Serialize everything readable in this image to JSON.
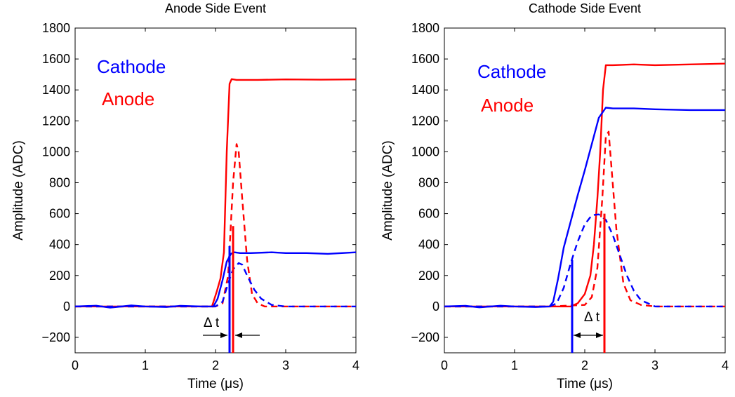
{
  "chart_data": [
    {
      "type": "line",
      "title": "Anode Side Event",
      "xlabel": "Time (μs)",
      "ylabel": "Amplitude (ADC)",
      "xlim": [
        0,
        4
      ],
      "ylim": [
        -300,
        1800
      ],
      "xticks": [
        0,
        1,
        2,
        3,
        4
      ],
      "xtick_labels": [
        "0",
        "1",
        "2",
        "3",
        "4"
      ],
      "yticks": [
        -200,
        0,
        200,
        400,
        600,
        800,
        1000,
        1200,
        1400,
        1600,
        1800
      ],
      "ytick_labels": [
        "−200",
        "0",
        "200",
        "400",
        "600",
        "800",
        "1000",
        "1200",
        "1400",
        "1600",
        "1800"
      ],
      "grid": false,
      "legend": [
        {
          "label": "Cathode",
          "color": "#0000ff"
        },
        {
          "label": "Anode",
          "color": "#ff0000"
        }
      ],
      "legend_position": "top-left",
      "annotation": {
        "text": "Δ t",
        "t_from": 2.2,
        "t_to": 2.25
      },
      "series": [
        {
          "color": "#ff0000",
          "style": "solid",
          "x": [
            0,
            0.5,
            1.0,
            1.5,
            1.95,
            2.02,
            2.07,
            2.12,
            2.16,
            2.2,
            2.23,
            2.3,
            2.6,
            3.0,
            3.5,
            4.0
          ],
          "y": [
            0,
            0,
            0,
            0,
            0,
            100,
            180,
            350,
            1000,
            1440,
            1470,
            1465,
            1465,
            1468,
            1466,
            1468
          ]
        },
        {
          "color": "#ff0000",
          "style": "dashed",
          "x": [
            0,
            0.5,
            1.0,
            1.5,
            2.0,
            2.1,
            2.18,
            2.25,
            2.3,
            2.33,
            2.38,
            2.45,
            2.52,
            2.6,
            2.7,
            3.0,
            3.5,
            4.0
          ],
          "y": [
            0,
            0,
            0,
            0,
            0,
            20,
            200,
            800,
            1050,
            1000,
            700,
            300,
            80,
            20,
            0,
            0,
            0,
            0
          ]
        },
        {
          "color": "#0000ff",
          "style": "solid",
          "x": [
            0,
            0.3,
            0.5,
            0.8,
            1.0,
            1.3,
            1.5,
            1.8,
            1.97,
            2.03,
            2.1,
            2.16,
            2.22,
            2.27,
            2.35,
            2.5,
            2.8,
            3.0,
            3.3,
            3.6,
            4.0
          ],
          "y": [
            0,
            5,
            -8,
            6,
            0,
            -4,
            4,
            0,
            0,
            50,
            170,
            290,
            340,
            350,
            345,
            345,
            350,
            345,
            345,
            340,
            350
          ]
        },
        {
          "color": "#0000ff",
          "style": "dashed",
          "x": [
            0,
            0.5,
            1.0,
            1.5,
            2.0,
            2.1,
            2.18,
            2.25,
            2.33,
            2.38,
            2.45,
            2.55,
            2.65,
            2.8,
            3.0,
            3.5,
            4.0
          ],
          "y": [
            0,
            0,
            0,
            0,
            0,
            30,
            150,
            240,
            280,
            270,
            200,
            110,
            50,
            10,
            0,
            0,
            0
          ]
        }
      ],
      "markers": [
        {
          "x": 2.2,
          "y0": -300,
          "y1": 390,
          "color": "#0000ff"
        },
        {
          "x": 2.25,
          "y0": -300,
          "y1": 520,
          "color": "#ff0000"
        }
      ]
    },
    {
      "type": "line",
      "title": "Cathode Side Event",
      "xlabel": "Time (μs)",
      "ylabel": "Amplitude (ADC)",
      "xlim": [
        0,
        4
      ],
      "ylim": [
        -300,
        1800
      ],
      "xticks": [
        0,
        1,
        2,
        3,
        4
      ],
      "xtick_labels": [
        "0",
        "1",
        "2",
        "3",
        "4"
      ],
      "yticks": [
        -200,
        0,
        200,
        400,
        600,
        800,
        1000,
        1200,
        1400,
        1600,
        1800
      ],
      "ytick_labels": [
        "−200",
        "0",
        "200",
        "400",
        "600",
        "800",
        "1000",
        "1200",
        "1400",
        "1600",
        "1800"
      ],
      "grid": false,
      "legend": [
        {
          "label": "Cathode",
          "color": "#0000ff"
        },
        {
          "label": "Anode",
          "color": "#ff0000"
        }
      ],
      "legend_position": "top-left",
      "annotation": {
        "text": "Δ t",
        "t_from": 1.82,
        "t_to": 2.28
      },
      "series": [
        {
          "color": "#ff0000",
          "style": "solid",
          "x": [
            0,
            0.5,
            1.0,
            1.5,
            1.8,
            1.9,
            2.0,
            2.08,
            2.13,
            2.18,
            2.22,
            2.26,
            2.3,
            2.4,
            2.7,
            3.0,
            3.5,
            4.0
          ],
          "y": [
            0,
            0,
            0,
            0,
            0,
            20,
            80,
            200,
            400,
            700,
            1000,
            1400,
            1560,
            1560,
            1565,
            1560,
            1565,
            1570
          ]
        },
        {
          "color": "#ff0000",
          "style": "dashed",
          "x": [
            0,
            0.5,
            1.0,
            1.5,
            2.0,
            2.1,
            2.18,
            2.25,
            2.3,
            2.34,
            2.38,
            2.45,
            2.55,
            2.65,
            2.8,
            3.0,
            3.5,
            4.0
          ],
          "y": [
            0,
            0,
            0,
            0,
            10,
            60,
            250,
            700,
            1100,
            1130,
            900,
            500,
            150,
            40,
            10,
            0,
            0,
            0
          ]
        },
        {
          "color": "#0000ff",
          "style": "solid",
          "x": [
            0,
            0.3,
            0.5,
            0.8,
            1.0,
            1.3,
            1.5,
            1.55,
            1.62,
            1.7,
            1.8,
            1.9,
            2.0,
            2.1,
            2.2,
            2.3,
            2.4,
            2.7,
            3.0,
            3.5,
            4.0
          ],
          "y": [
            0,
            4,
            -6,
            5,
            0,
            -4,
            0,
            30,
            180,
            380,
            550,
            720,
            880,
            1050,
            1220,
            1285,
            1280,
            1280,
            1275,
            1270,
            1270
          ]
        },
        {
          "color": "#0000ff",
          "style": "dashed",
          "x": [
            0,
            0.5,
            1.0,
            1.5,
            1.6,
            1.7,
            1.8,
            1.9,
            2.0,
            2.1,
            2.2,
            2.3,
            2.4,
            2.5,
            2.6,
            2.7,
            2.8,
            3.0,
            3.5,
            4.0
          ],
          "y": [
            0,
            0,
            0,
            0,
            20,
            120,
            280,
            420,
            530,
            590,
            595,
            560,
            460,
            330,
            200,
            100,
            40,
            0,
            0,
            0
          ]
        }
      ],
      "markers": [
        {
          "x": 1.82,
          "y0": -300,
          "y1": 300,
          "color": "#0000ff"
        },
        {
          "x": 2.28,
          "y0": -300,
          "y1": 600,
          "color": "#ff0000"
        }
      ]
    }
  ]
}
